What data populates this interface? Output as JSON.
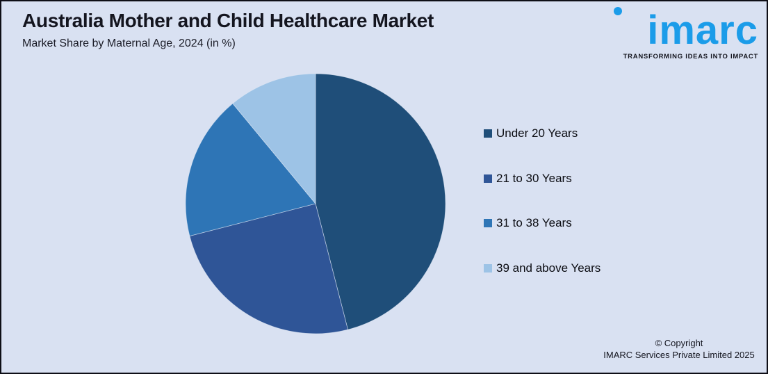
{
  "logo": {
    "wordmark": "imarc",
    "tagline": "TRANSFORMING IDEAS INTO IMPACT",
    "brand_color": "#1B9CE9"
  },
  "footer": {
    "copyright_line1": "© Copyright",
    "copyright_line2": "IMARC Services Private Limited 2025"
  },
  "colors": {
    "background": "#D9E1F2",
    "text": "#14151F",
    "border": "#0E0E16"
  },
  "chart_data": {
    "type": "pie",
    "title": "Australia Mother and Child Healthcare Market",
    "subtitle": "Market Share by Maternal Age, 2024 (in %)",
    "labels": [
      "Under 20 Years",
      "21 to 30 Years",
      "31 to 38 Years",
      "39 and above Years"
    ],
    "values": [
      46,
      25,
      18,
      11
    ],
    "colors": [
      "#1F4E79",
      "#2F5597",
      "#2E75B6",
      "#9DC3E6"
    ],
    "start_angle_deg": 0,
    "direction": "clockwise",
    "legend_position": "right",
    "data_labels_shown": false
  }
}
